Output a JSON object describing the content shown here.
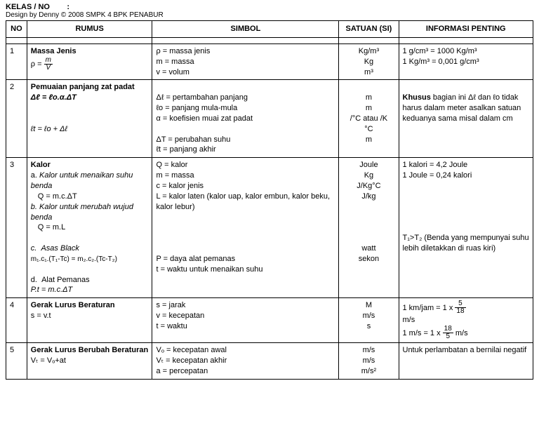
{
  "header": {
    "kelas": "KELAS / NO",
    "colon": ":",
    "design": "Design by Denny © 2008  SMPK 4 BPK PENABUR"
  },
  "columns": {
    "no": "NO",
    "rumus": "RUMUS",
    "simbol": "SIMBOL",
    "satuan": "SATUAN (SI)",
    "info": "INFORMASI PENTING"
  },
  "rows": {
    "r1": {
      "no": "1",
      "title": "Massa Jenis",
      "formula_lhs": "ρ =",
      "formula_num": "m",
      "formula_den": "V",
      "sym1": "ρ  = massa jenis",
      "sym2": "m = massa",
      "sym3": "v  = volum",
      "sat1": "Kg/m³",
      "sat2": "Kg",
      "sat3": "m³",
      "info1": "1 g/cm³ = 1000 Kg/m³",
      "info2": "1 Kg/m³ = 0,001 g/cm³"
    },
    "r2": {
      "no": "2",
      "title": "Pemuaian  panjang zat  padat",
      "f1": "Δℓ = ℓo.α.ΔT",
      "f2": "ℓt = ℓo + Δℓ",
      "sym1": "Δℓ = pertambahan panjang",
      "sym2": "ℓo = panjang mula-mula",
      "sym3": "α  = koefisien muai zat padat",
      "sym4": "ΔT = perubahan suhu",
      "sym5": "ℓt = panjang akhir",
      "sat1": "m",
      "sat2": "m",
      "sat3": "/°C atau /K",
      "sat4": "°C",
      "sat5": "m",
      "info1_bold": "Khusus",
      "info1_rest": " bagian  ini Δℓ dan  ℓo tidak harus dalam meter asalkan satuan keduanya sama misal dalam cm"
    },
    "r3": {
      "no": "3",
      "title": "Kalor",
      "a_label": "a.",
      "a_text": "Kalor untuk menaikan suhu benda",
      "a_f": "Q = m.c.ΔT",
      "b_label": "b.",
      "b_text": "Kalor untuk merubah wujud benda",
      "b_f": "Q = m.L",
      "c_label": "c.",
      "c_text": "Asas Black",
      "c_f": "m₁.c₁.(T₁-Tc) = m₂.c₂.(Tc-T₂)",
      "d_label": "d.",
      "d_text": "Alat Pemanas",
      "d_f": "P.t = m.c.ΔT",
      "sym1": "Q = kalor",
      "sym2": "m = massa",
      "sym3": "c  = kalor jenis",
      "sym4": "L  =  kalor  laten  (kalor  uap, kalor embun, kalor beku, kalor lebur)",
      "sym5": "P = daya alat pemanas",
      "sym6": "t  =  waktu  untuk  menaikan suhu",
      "sat1": "Joule",
      "sat2": "Kg",
      "sat3": "J/Kg°C",
      "sat4": "J/kg",
      "sat5": "watt",
      "sat6": "sekon",
      "info1": "1 kalori = 4,2 Joule",
      "info2": "1 Joule = 0,24 kalori",
      "info3": "T₁>T₂ (Benda yang mempunyai suhu lebih diletakkan di ruas kiri)"
    },
    "r4": {
      "no": "4",
      "title": "Gerak  Lurus Beraturan",
      "f": "s = v.t",
      "sym1": "s = jarak",
      "sym2": "v = kecepatan",
      "sym3": "t  = waktu",
      "sat1": "M",
      "sat2": "m/s",
      "sat3": "s",
      "info1_a": "1 km/jam = 1 x",
      "info1_num": "5",
      "info1_den": "18",
      "info1_b": "m/s",
      "info2_a": "1 m/s = 1 x",
      "info2_num": "18",
      "info2_den": "5",
      "info2_b": " m/s"
    },
    "r5": {
      "no": "5",
      "title": "Gerak Lurus Berubah Beraturan",
      "f": "Vₜ = Vₒ+at",
      "sym1": "Vₒ = kecepatan awal",
      "sym2": "Vₜ = kecepatan akhir",
      "sym3": "a   = percepatan",
      "sat1": "m/s",
      "sat2": "m/s",
      "sat3": "m/s²",
      "info": "Untuk perlambatan a bernilai negatif"
    }
  }
}
